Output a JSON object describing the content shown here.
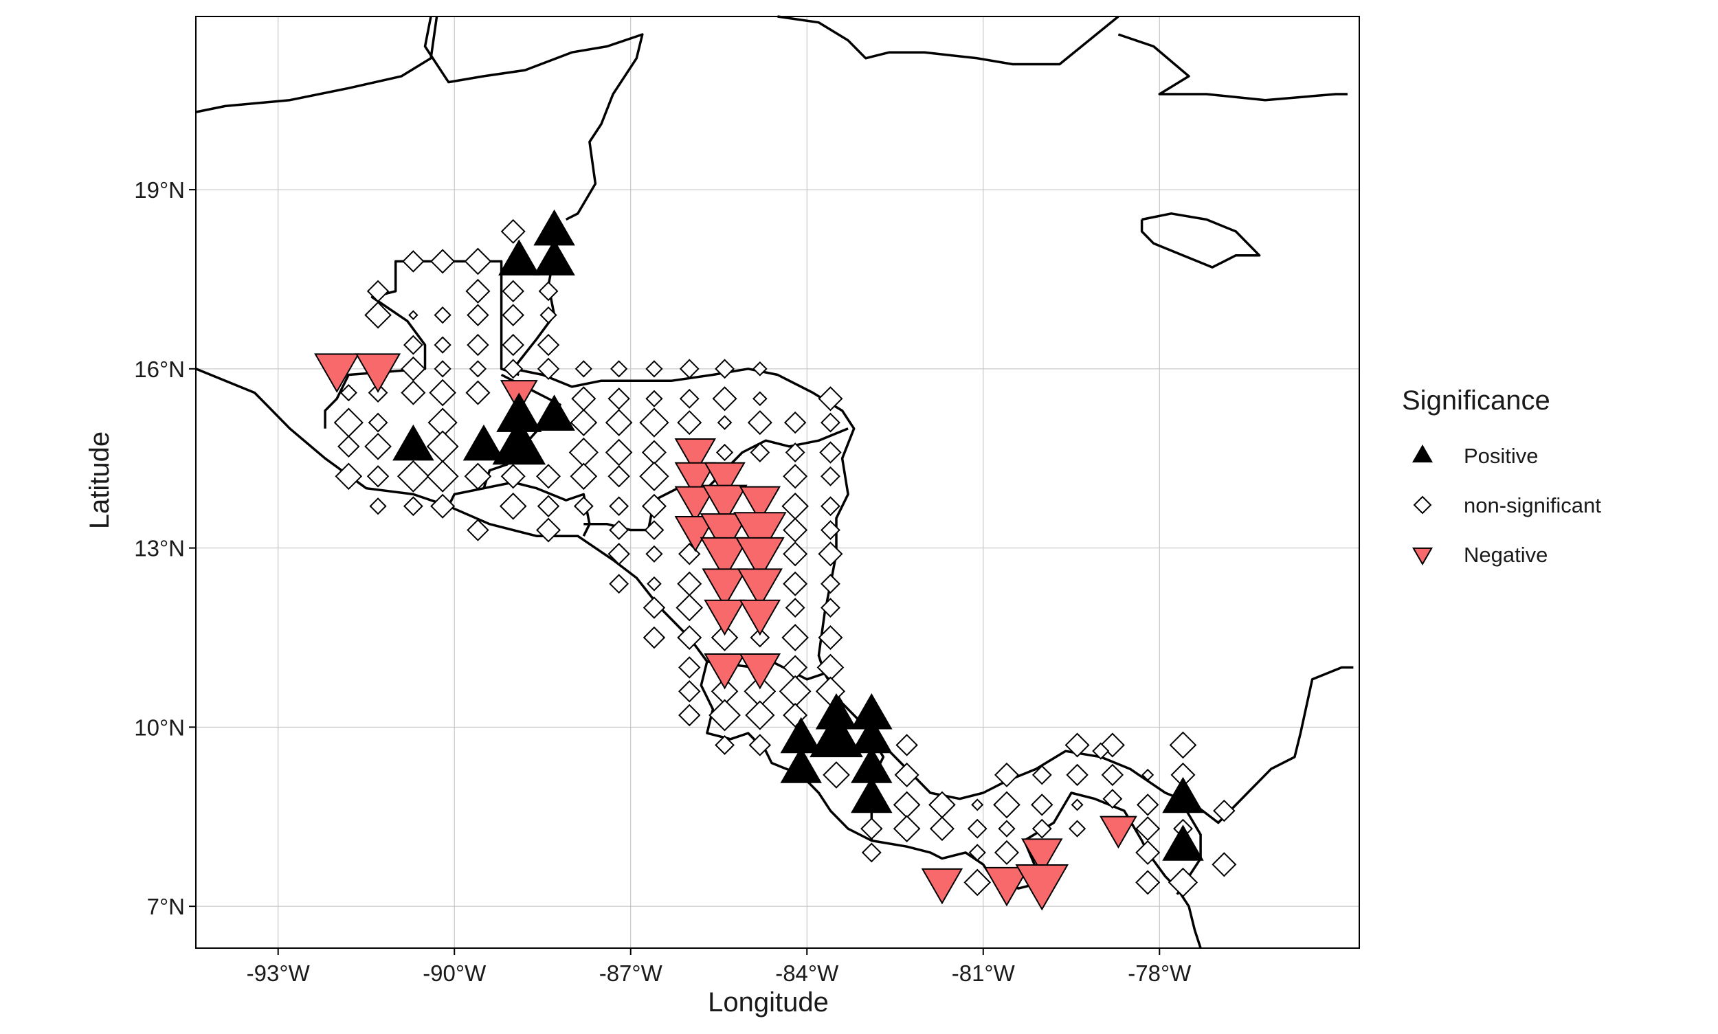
{
  "axes": {
    "xlabel": "Longitude",
    "ylabel": "Latitude",
    "x_range": [
      -94.4,
      -74.6
    ],
    "y_range": [
      6.3,
      21.9
    ],
    "x_ticks": [
      -93,
      -90,
      -87,
      -84,
      -81,
      -78
    ],
    "x_tick_labels": [
      "-93°W",
      "-90°W",
      "-87°W",
      "-84°W",
      "-81°W",
      "-78°W"
    ],
    "y_ticks": [
      7,
      10,
      13,
      16,
      19
    ],
    "y_tick_labels": [
      "7°N",
      "10°N",
      "13°N",
      "16°N",
      "19°N"
    ],
    "grid": true
  },
  "legend": {
    "title": "Significance",
    "placement": "right",
    "items": [
      {
        "label": "Positive",
        "shape": "triangle-up",
        "fill": "#000000"
      },
      {
        "label": "non-significant",
        "shape": "diamond",
        "fill": "#ffffff"
      },
      {
        "label": "Negative",
        "shape": "triangle-down",
        "fill": "#f8696b"
      }
    ]
  },
  "colors": {
    "positive": "#000000",
    "negative": "#f8696b",
    "outline": "#000000",
    "grid": "#bdbdbd"
  },
  "chart_data": {
    "type": "scatter",
    "x_unit": "degrees longitude",
    "y_unit": "degrees latitude",
    "series": [
      {
        "name": "Positive",
        "points": [
          [
            -88.9,
            17.8,
            1.0
          ],
          [
            -88.3,
            18.3,
            1.0
          ],
          [
            -88.3,
            17.8,
            1.0
          ],
          [
            -90.7,
            14.7,
            1.0
          ],
          [
            -89.5,
            14.7,
            1.0
          ],
          [
            -88.9,
            14.7,
            1.3
          ],
          [
            -88.9,
            15.2,
            1.1
          ],
          [
            -88.3,
            15.2,
            1.0
          ],
          [
            -84.1,
            9.8,
            1.0
          ],
          [
            -84.1,
            9.3,
            1.0
          ],
          [
            -83.5,
            10.2,
            1.0
          ],
          [
            -83.5,
            9.8,
            1.3
          ],
          [
            -82.9,
            10.2,
            1.0
          ],
          [
            -82.9,
            9.8,
            1.0
          ],
          [
            -82.9,
            9.3,
            1.0
          ],
          [
            -82.9,
            8.8,
            1.0
          ],
          [
            -77.6,
            8.8,
            1.0
          ],
          [
            -77.6,
            8.0,
            1.0
          ]
        ]
      },
      {
        "name": "non-significant",
        "point_note": "diamond markers across the Central American land grid; third value is relative marker size"
      },
      {
        "name": "Negative",
        "points": [
          [
            -92.0,
            16.0,
            1.1
          ],
          [
            -91.3,
            16.0,
            1.1
          ],
          [
            -88.9,
            15.6,
            0.9
          ],
          [
            -85.9,
            14.6,
            1.0
          ],
          [
            -85.9,
            14.2,
            1.0
          ],
          [
            -85.9,
            13.8,
            1.0
          ],
          [
            -85.9,
            13.3,
            1.0
          ],
          [
            -85.4,
            14.2,
            1.0
          ],
          [
            -85.4,
            13.8,
            1.1
          ],
          [
            -85.4,
            13.3,
            1.2
          ],
          [
            -85.4,
            12.9,
            1.2
          ],
          [
            -85.4,
            12.4,
            1.1
          ],
          [
            -85.4,
            11.9,
            1.0
          ],
          [
            -84.8,
            13.8,
            1.0
          ],
          [
            -84.8,
            13.3,
            1.3
          ],
          [
            -84.8,
            12.9,
            1.2
          ],
          [
            -84.8,
            12.4,
            1.1
          ],
          [
            -84.8,
            11.9,
            1.0
          ],
          [
            -85.4,
            11.0,
            1.0
          ],
          [
            -84.8,
            11.0,
            1.0
          ],
          [
            -81.7,
            7.4,
            1.0
          ],
          [
            -80.6,
            7.4,
            1.1
          ],
          [
            -80.0,
            7.9,
            1.0
          ],
          [
            -80.0,
            7.4,
            1.3
          ],
          [
            -78.7,
            8.3,
            0.9
          ]
        ]
      }
    ],
    "nonsignificant_points": [
      [
        -91.3,
        17.3,
        0.6
      ],
      [
        -90.7,
        17.8,
        0.6
      ],
      [
        -90.2,
        17.8,
        0.7
      ],
      [
        -89.6,
        17.8,
        0.8
      ],
      [
        -91.3,
        16.9,
        0.8
      ],
      [
        -90.7,
        16.9,
        0.1
      ],
      [
        -90.2,
        16.9,
        0.4
      ],
      [
        -89.6,
        17.3,
        0.7
      ],
      [
        -90.7,
        16.4,
        0.5
      ],
      [
        -90.2,
        16.4,
        0.4
      ],
      [
        -89.6,
        16.9,
        0.6
      ],
      [
        -90.7,
        16.0,
        0.7
      ],
      [
        -90.2,
        16.0,
        0.4
      ],
      [
        -89.6,
        16.4,
        0.6
      ],
      [
        -89.6,
        16.0,
        0.4
      ],
      [
        -90.7,
        15.6,
        0.7
      ],
      [
        -90.2,
        15.6,
        0.8
      ],
      [
        -89.6,
        15.6,
        0.7
      ],
      [
        -91.8,
        15.6,
        0.4
      ],
      [
        -91.3,
        15.6,
        0.5
      ],
      [
        -91.8,
        15.1,
        0.9
      ],
      [
        -91.3,
        15.1,
        0.5
      ],
      [
        -90.2,
        15.1,
        0.9
      ],
      [
        -91.8,
        14.7,
        0.6
      ],
      [
        -91.3,
        14.7,
        0.8
      ],
      [
        -90.2,
        14.7,
        1.0
      ],
      [
        -91.8,
        14.2,
        0.8
      ],
      [
        -91.3,
        14.2,
        0.6
      ],
      [
        -90.7,
        14.2,
        1.0
      ],
      [
        -90.2,
        14.2,
        1.0
      ],
      [
        -89.6,
        14.2,
        0.8
      ],
      [
        -91.3,
        13.7,
        0.4
      ],
      [
        -90.7,
        13.7,
        0.5
      ],
      [
        -90.2,
        13.7,
        0.7
      ],
      [
        -89.6,
        13.3,
        0.6
      ],
      [
        -89.0,
        18.3,
        0.7
      ],
      [
        -89.0,
        17.3,
        0.6
      ],
      [
        -88.4,
        17.3,
        0.5
      ],
      [
        -89.0,
        16.9,
        0.6
      ],
      [
        -88.4,
        16.9,
        0.4
      ],
      [
        -89.0,
        16.4,
        0.6
      ],
      [
        -88.4,
        16.4,
        0.6
      ],
      [
        -89.0,
        16.0,
        0.5
      ],
      [
        -88.4,
        16.0,
        0.6
      ],
      [
        -89.0,
        14.2,
        0.7
      ],
      [
        -88.4,
        14.2,
        0.7
      ],
      [
        -89.0,
        13.7,
        0.8
      ],
      [
        -88.4,
        13.7,
        0.6
      ],
      [
        -88.4,
        13.3,
        0.7
      ],
      [
        -87.8,
        16.0,
        0.4
      ],
      [
        -87.2,
        16.0,
        0.4
      ],
      [
        -86.6,
        16.0,
        0.4
      ],
      [
        -86.0,
        16.0,
        0.5
      ],
      [
        -85.4,
        16.0,
        0.5
      ],
      [
        -84.8,
        16.0,
        0.3
      ],
      [
        -87.8,
        15.5,
        0.7
      ],
      [
        -87.2,
        15.5,
        0.6
      ],
      [
        -86.6,
        15.5,
        0.4
      ],
      [
        -86.0,
        15.5,
        0.5
      ],
      [
        -85.4,
        15.5,
        0.7
      ],
      [
        -84.8,
        15.5,
        0.3
      ],
      [
        -83.6,
        15.5,
        0.7
      ],
      [
        -87.8,
        15.1,
        0.8
      ],
      [
        -87.2,
        15.1,
        0.8
      ],
      [
        -86.6,
        15.1,
        0.9
      ],
      [
        -86.0,
        15.1,
        0.7
      ],
      [
        -85.4,
        15.1,
        0.3
      ],
      [
        -84.8,
        15.1,
        0.7
      ],
      [
        -84.2,
        15.1,
        0.6
      ],
      [
        -83.6,
        15.1,
        0.5
      ],
      [
        -87.8,
        14.6,
        0.9
      ],
      [
        -87.2,
        14.6,
        0.8
      ],
      [
        -86.6,
        14.6,
        0.7
      ],
      [
        -85.4,
        14.6,
        0.4
      ],
      [
        -84.8,
        14.6,
        0.5
      ],
      [
        -84.2,
        14.6,
        0.5
      ],
      [
        -83.6,
        14.6,
        0.6
      ],
      [
        -87.8,
        14.2,
        0.8
      ],
      [
        -87.2,
        14.2,
        0.6
      ],
      [
        -86.6,
        14.2,
        0.9
      ],
      [
        -84.2,
        14.2,
        0.7
      ],
      [
        -83.6,
        14.2,
        0.5
      ],
      [
        -87.8,
        13.7,
        0.5
      ],
      [
        -87.2,
        13.7,
        0.5
      ],
      [
        -86.6,
        13.7,
        0.7
      ],
      [
        -84.2,
        13.7,
        0.8
      ],
      [
        -83.6,
        13.7,
        0.5
      ],
      [
        -87.2,
        13.3,
        0.5
      ],
      [
        -86.6,
        13.3,
        0.5
      ],
      [
        -84.2,
        13.3,
        0.7
      ],
      [
        -83.6,
        13.3,
        0.5
      ],
      [
        -87.2,
        12.9,
        0.6
      ],
      [
        -86.6,
        12.9,
        0.4
      ],
      [
        -86.0,
        12.9,
        0.6
      ],
      [
        -84.2,
        12.9,
        0.7
      ],
      [
        -83.6,
        12.9,
        0.7
      ],
      [
        -87.2,
        12.4,
        0.5
      ],
      [
        -86.6,
        12.4,
        0.3
      ],
      [
        -86.0,
        12.4,
        0.7
      ],
      [
        -84.2,
        12.4,
        0.7
      ],
      [
        -83.6,
        12.4,
        0.5
      ],
      [
        -86.6,
        12.0,
        0.6
      ],
      [
        -86.0,
        12.0,
        0.8
      ],
      [
        -84.2,
        12.0,
        0.5
      ],
      [
        -83.6,
        12.0,
        0.5
      ],
      [
        -86.6,
        11.5,
        0.6
      ],
      [
        -86.0,
        11.5,
        0.7
      ],
      [
        -85.4,
        11.5,
        0.8
      ],
      [
        -84.8,
        11.5,
        0.5
      ],
      [
        -84.2,
        11.5,
        0.8
      ],
      [
        -83.6,
        11.5,
        0.7
      ],
      [
        -86.0,
        11.0,
        0.6
      ],
      [
        -84.2,
        11.0,
        0.7
      ],
      [
        -83.6,
        11.0,
        0.8
      ],
      [
        -86.0,
        10.6,
        0.6
      ],
      [
        -85.4,
        10.6,
        0.8
      ],
      [
        -84.8,
        10.6,
        1.0
      ],
      [
        -84.2,
        10.6,
        1.0
      ],
      [
        -83.6,
        10.6,
        0.9
      ],
      [
        -86.0,
        10.2,
        0.6
      ],
      [
        -85.4,
        10.2,
        1.0
      ],
      [
        -84.8,
        10.2,
        0.9
      ],
      [
        -84.2,
        10.2,
        0.7
      ],
      [
        -85.4,
        9.7,
        0.5
      ],
      [
        -84.8,
        9.7,
        0.6
      ],
      [
        -83.5,
        9.2,
        0.8
      ],
      [
        -82.9,
        8.3,
        0.6
      ],
      [
        -82.9,
        7.9,
        0.5
      ],
      [
        -82.3,
        9.7,
        0.6
      ],
      [
        -82.3,
        9.2,
        0.7
      ],
      [
        -82.3,
        8.7,
        0.8
      ],
      [
        -82.3,
        8.3,
        0.8
      ],
      [
        -81.7,
        8.7,
        0.8
      ],
      [
        -81.7,
        8.3,
        0.7
      ],
      [
        -81.1,
        8.7,
        0.2
      ],
      [
        -81.1,
        8.3,
        0.5
      ],
      [
        -81.1,
        7.9,
        0.4
      ],
      [
        -81.1,
        7.4,
        0.8
      ],
      [
        -80.6,
        9.2,
        0.7
      ],
      [
        -80.6,
        8.7,
        0.8
      ],
      [
        -80.6,
        8.3,
        0.4
      ],
      [
        -80.0,
        9.2,
        0.5
      ],
      [
        -80.0,
        8.7,
        0.6
      ],
      [
        -80.0,
        8.3,
        0.5
      ],
      [
        -79.4,
        9.7,
        0.7
      ],
      [
        -79.4,
        9.2,
        0.6
      ],
      [
        -79.4,
        8.7,
        0.2
      ],
      [
        -78.8,
        9.7,
        0.7
      ],
      [
        -78.8,
        9.2,
        0.6
      ],
      [
        -78.8,
        8.8,
        0.5
      ],
      [
        -78.2,
        9.2,
        0.2
      ],
      [
        -78.2,
        8.7,
        0.6
      ],
      [
        -77.6,
        9.7,
        0.8
      ],
      [
        -77.6,
        9.2,
        0.7
      ],
      [
        -77.6,
        8.3,
        0.5
      ],
      [
        -77.6,
        7.4,
        0.9
      ],
      [
        -78.2,
        7.4,
        0.7
      ],
      [
        -78.2,
        7.9,
        0.7
      ],
      [
        -78.2,
        8.3,
        0.7
      ],
      [
        -79.4,
        8.3,
        0.4
      ],
      [
        -80.6,
        7.9,
        0.7
      ],
      [
        -79.0,
        9.6,
        0.4
      ],
      [
        -76.9,
        8.6,
        0.6
      ],
      [
        -76.9,
        7.7,
        0.7
      ]
    ]
  }
}
